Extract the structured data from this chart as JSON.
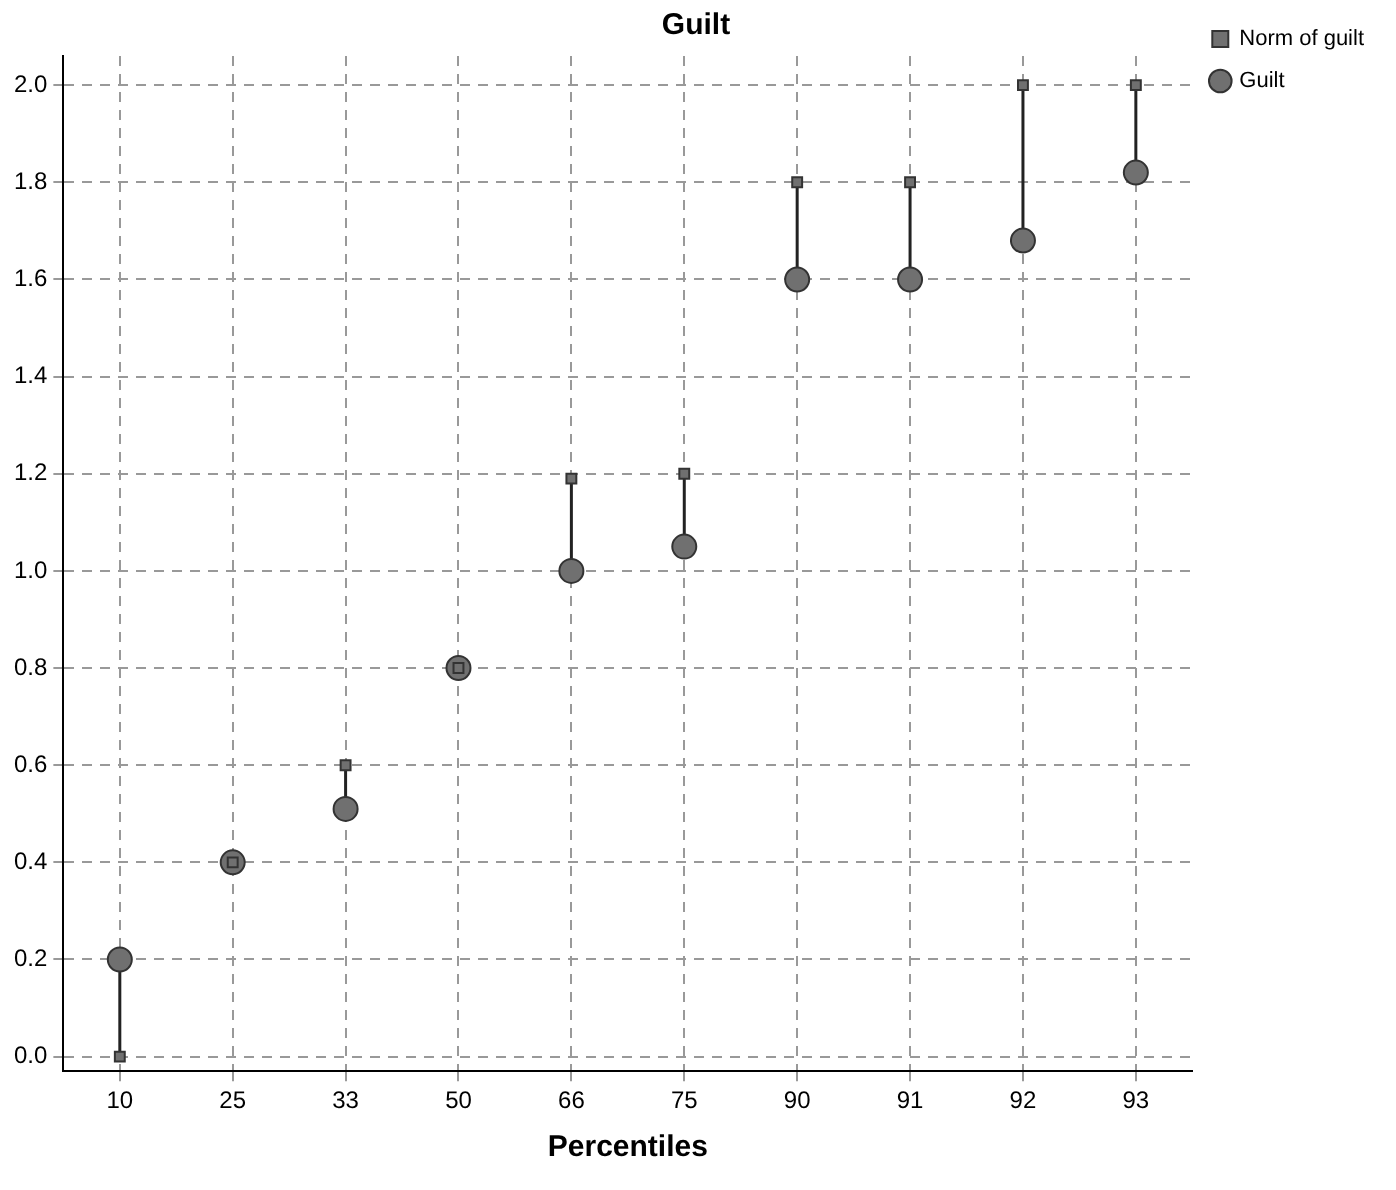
{
  "chart_data": {
    "type": "scatter",
    "title": "Guilt",
    "xlabel": "Percentiles",
    "categories": [
      "10",
      "25",
      "33",
      "50",
      "66",
      "75",
      "90",
      "91",
      "92",
      "93"
    ],
    "series": [
      {
        "name": "Guilt",
        "color": "#707070",
        "marker": "circle",
        "values": [
          0.2,
          0.4,
          0.51,
          0.8,
          1.0,
          1.05,
          1.6,
          1.6,
          1.68,
          1.82
        ]
      },
      {
        "name": "Norm of guilt",
        "color": "#707070",
        "marker": "square",
        "values": [
          0.0,
          0.4,
          0.6,
          0.8,
          1.19,
          1.2,
          1.8,
          1.8,
          2.0,
          2.0
        ]
      }
    ],
    "ylim": [
      -0.03,
      2.06
    ],
    "yticks": [
      {
        "value": 0,
        "label": "0.0"
      },
      0.2,
      0.4,
      0.6,
      0.8,
      {
        "value": 1,
        "label": "1.0"
      },
      1.2,
      1.4,
      1.6,
      1.8,
      {
        "value": 2,
        "label": "2.0"
      }
    ],
    "grid": true,
    "legend": "top right"
  }
}
